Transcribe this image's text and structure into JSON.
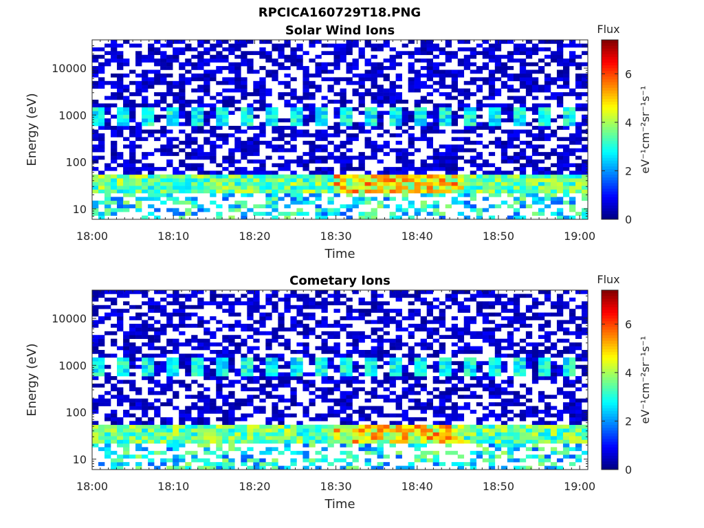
{
  "figure_title": "RPCICA160729T18.PNG",
  "chart_data": [
    {
      "type": "heatmap",
      "title": "Solar Wind Ions",
      "xlabel": "Time",
      "ylabel": "Energy (eV)",
      "x_ticks": [
        "18:00",
        "18:10",
        "18:20",
        "18:30",
        "18:40",
        "18:50",
        "19:00"
      ],
      "y_ticks": [
        "10",
        "100",
        "1000",
        "10000"
      ],
      "yscale": "log",
      "ylim": [
        6,
        40000
      ],
      "xlim": [
        "18:00",
        "19:01"
      ],
      "colorbar": {
        "title": "Flux",
        "label": "eV⁻¹cm⁻²sr⁻¹s⁻¹",
        "ticks": [
          "0",
          "2",
          "4",
          "6"
        ],
        "range": [
          0,
          7.4
        ],
        "colormap": "jet"
      },
      "features": {
        "band_low_eV": [
          20,
          50
        ],
        "band_low_peak_flux": 6,
        "band_high_eV": [
          600,
          1500
        ],
        "band_high_peak_flux": 3.5,
        "background_flux": 0.5
      }
    },
    {
      "type": "heatmap",
      "title": "Cometary Ions",
      "xlabel": "Time",
      "ylabel": "Energy (eV)",
      "x_ticks": [
        "18:00",
        "18:10",
        "18:20",
        "18:30",
        "18:40",
        "18:50",
        "19:00"
      ],
      "y_ticks": [
        "10",
        "100",
        "1000",
        "10000"
      ],
      "yscale": "log",
      "ylim": [
        6,
        40000
      ],
      "xlim": [
        "18:00",
        "19:01"
      ],
      "colorbar": {
        "title": "Flux",
        "label": "eV⁻¹cm⁻²sr⁻¹s⁻¹",
        "ticks": [
          "0",
          "2",
          "4",
          "6"
        ],
        "range": [
          0,
          7.4
        ],
        "colormap": "jet"
      },
      "features": {
        "band_low_eV": [
          20,
          50
        ],
        "band_low_peak_flux": 6,
        "band_high_eV": [
          600,
          1500
        ],
        "band_high_peak_flux": 3.5,
        "background_flux": 0.5
      }
    }
  ]
}
